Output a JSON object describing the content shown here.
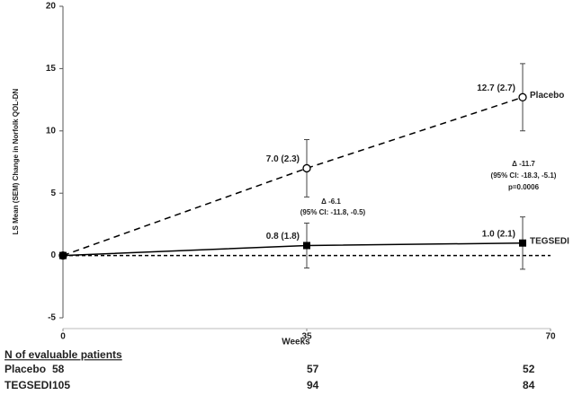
{
  "chart_data": {
    "type": "line",
    "x_label": "Weeks",
    "y_label": "LS Mean (SEM) Change in Norfolk QOL-DN",
    "x": [
      0,
      35,
      66
    ],
    "series": [
      {
        "name": "Placebo",
        "color": "#000000",
        "line_style": "dashed",
        "marker": "open-circle",
        "values": [
          0,
          7.0,
          12.7
        ],
        "errors": [
          null,
          2.3,
          2.7
        ],
        "value_labels": [
          null,
          "7.0 (2.3)",
          "12.7 (2.7)"
        ]
      },
      {
        "name": "TEGSEDI",
        "color": "#000000",
        "line_style": "solid",
        "marker": "filled-square",
        "values": [
          0,
          0.8,
          1.0
        ],
        "errors": [
          null,
          1.8,
          2.1
        ],
        "value_labels": [
          null,
          "0.8 (1.8)",
          "1.0 (2.1)"
        ]
      }
    ],
    "xlim": [
      0,
      70
    ],
    "xticks": [
      0,
      35,
      70
    ],
    "ylim": [
      -5,
      20
    ],
    "yticks": [
      -5,
      0,
      5,
      10,
      15,
      20
    ],
    "reference_line": 0,
    "annotations": [
      "Δ -6.1",
      "(95% CI: -11.8, -0.5)",
      "Δ -11.7",
      "(95% CI: -18.3, -5.1)",
      "p=0.0006"
    ],
    "table": {
      "title": "N of evaluable patients",
      "rows": [
        [
          "Placebo",
          "58",
          "57",
          "52"
        ],
        [
          "TEGSEDI",
          "105",
          "94",
          "84"
        ]
      ]
    }
  }
}
